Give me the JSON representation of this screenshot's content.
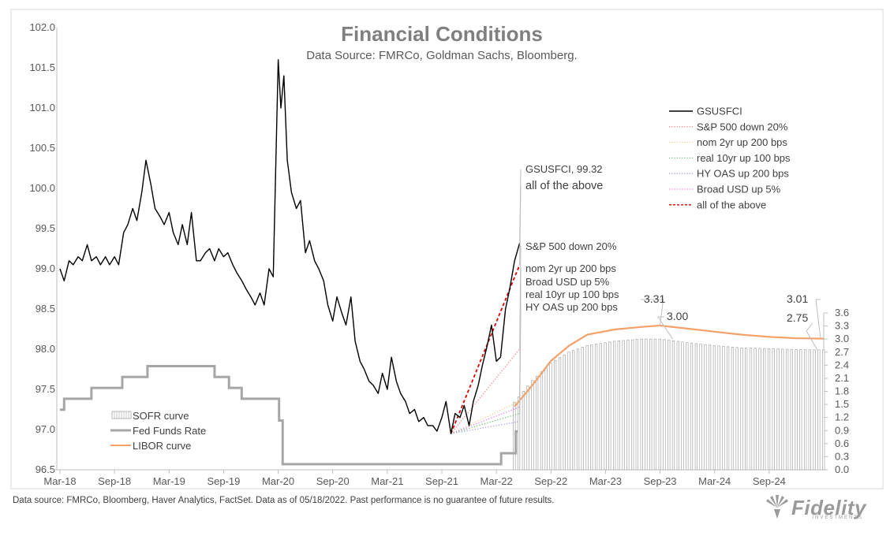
{
  "title": "Financial Conditions",
  "subtitle": "Data Source: FMRCo, Goldman Sachs, Bloomberg.",
  "footer": "Data source: FMRCo, Bloomberg, Haver Analytics, FactSet. Data as of 05/18/2022. Past performance is no guarantee of future results.",
  "logo": {
    "text": "Fidelity",
    "sub": "INVESTMENTS"
  },
  "colors": {
    "gsusfci": "#000000",
    "all_above": "#e00000",
    "sp500": "#f08080",
    "nom2yr": "#f5c89a",
    "real10yr": "#6fbf6f",
    "hyoas": "#9999ee",
    "usd": "#ee77ee",
    "fedfunds": "#a6a6a6",
    "libor": "#f4a16a",
    "sofr": "#a6a6a6",
    "label_orange": "#f08030"
  },
  "chart_data": {
    "type": "line",
    "title": "Financial Conditions",
    "x_ticks": [
      "Mar-18",
      "Sep-18",
      "Mar-19",
      "Sep-19",
      "Mar-20",
      "Sep-20",
      "Mar-21",
      "Sep-21",
      "Mar-22",
      "Sep-22",
      "Mar-23",
      "Sep-23",
      "Mar-24",
      "Sep-24"
    ],
    "x_range": [
      "2018-03",
      "2025-03"
    ],
    "y_left": {
      "ticks": [
        96.5,
        97.0,
        97.5,
        98.0,
        98.5,
        99.0,
        99.5,
        100.0,
        100.5,
        101.0,
        101.5,
        102.0
      ],
      "range": [
        96.5,
        102.0
      ]
    },
    "y_right": {
      "ticks": [
        0.0,
        0.3,
        0.6,
        0.9,
        1.2,
        1.5,
        1.8,
        2.1,
        2.4,
        2.7,
        3.0,
        3.3,
        3.6
      ],
      "range": [
        0.0,
        3.6
      ]
    },
    "legend_top_right": [
      {
        "name": "GSUSFCI",
        "style": "solid",
        "color_key": "gsusfci"
      },
      {
        "name": "S&P 500 down 20%",
        "style": "dotted",
        "color_key": "sp500"
      },
      {
        "name": "nom 2yr up 200 bps",
        "style": "dotted",
        "color_key": "nom2yr"
      },
      {
        "name": "real 10yr up 100 bps",
        "style": "dotted",
        "color_key": "real10yr"
      },
      {
        "name": "HY OAS up 200 bps",
        "style": "dotted",
        "color_key": "hyoas"
      },
      {
        "name": "Broad USD up 5%",
        "style": "dotted",
        "color_key": "usd"
      },
      {
        "name": "all of the above",
        "style": "dashed",
        "color_key": "all_above"
      }
    ],
    "legend_bottom_left": [
      {
        "name": "SOFR curve",
        "style": "bar",
        "color_key": "sofr"
      },
      {
        "name": "Fed Funds Rate",
        "style": "thick",
        "color_key": "fedfunds"
      },
      {
        "name": "LIBOR curve",
        "style": "solid",
        "color_key": "libor"
      }
    ],
    "series": [
      {
        "name": "GSUSFCI",
        "axis": "left",
        "type": "line",
        "color_key": "gsusfci",
        "points": [
          [
            "2018-03",
            99.0
          ],
          [
            "2018-03-15",
            98.85
          ],
          [
            "2018-04",
            99.1
          ],
          [
            "2018-04-15",
            99.05
          ],
          [
            "2018-05",
            99.15
          ],
          [
            "2018-05-15",
            99.1
          ],
          [
            "2018-06",
            99.3
          ],
          [
            "2018-06-15",
            99.1
          ],
          [
            "2018-07",
            99.15
          ],
          [
            "2018-07-15",
            99.05
          ],
          [
            "2018-08",
            99.15
          ],
          [
            "2018-08-15",
            99.05
          ],
          [
            "2018-09",
            99.15
          ],
          [
            "2018-09-15",
            99.05
          ],
          [
            "2018-10",
            99.45
          ],
          [
            "2018-10-15",
            99.55
          ],
          [
            "2018-11",
            99.75
          ],
          [
            "2018-11-15",
            99.6
          ],
          [
            "2018-12",
            99.95
          ],
          [
            "2018-12-15",
            100.35
          ],
          [
            "2019-01",
            100.05
          ],
          [
            "2019-01-15",
            99.75
          ],
          [
            "2019-02",
            99.65
          ],
          [
            "2019-02-15",
            99.55
          ],
          [
            "2019-03",
            99.7
          ],
          [
            "2019-03-15",
            99.45
          ],
          [
            "2019-04",
            99.3
          ],
          [
            "2019-04-15",
            99.55
          ],
          [
            "2019-05",
            99.3
          ],
          [
            "2019-05-15",
            99.7
          ],
          [
            "2019-06",
            99.1
          ],
          [
            "2019-06-15",
            99.1
          ],
          [
            "2019-07",
            99.2
          ],
          [
            "2019-07-15",
            99.25
          ],
          [
            "2019-08",
            99.1
          ],
          [
            "2019-08-15",
            99.25
          ],
          [
            "2019-09",
            99.15
          ],
          [
            "2019-09-15",
            99.2
          ],
          [
            "2019-10",
            99.05
          ],
          [
            "2019-10-15",
            98.95
          ],
          [
            "2019-11",
            98.85
          ],
          [
            "2019-11-15",
            98.75
          ],
          [
            "2019-12",
            98.65
          ],
          [
            "2019-12-15",
            98.55
          ],
          [
            "2020-01",
            98.7
          ],
          [
            "2020-01-15",
            98.55
          ],
          [
            "2020-02",
            99.0
          ],
          [
            "2020-02-15",
            98.9
          ],
          [
            "2020-03",
            101.6
          ],
          [
            "2020-03-10",
            101.0
          ],
          [
            "2020-03-20",
            101.4
          ],
          [
            "2020-04",
            100.35
          ],
          [
            "2020-04-15",
            99.95
          ],
          [
            "2020-05",
            99.75
          ],
          [
            "2020-05-15",
            99.85
          ],
          [
            "2020-06",
            99.2
          ],
          [
            "2020-06-15",
            99.35
          ],
          [
            "2020-07",
            99.1
          ],
          [
            "2020-07-15",
            99.0
          ],
          [
            "2020-08",
            98.85
          ],
          [
            "2020-08-15",
            98.55
          ],
          [
            "2020-09",
            98.35
          ],
          [
            "2020-09-15",
            98.65
          ],
          [
            "2020-10",
            98.45
          ],
          [
            "2020-10-15",
            98.3
          ],
          [
            "2020-11",
            98.65
          ],
          [
            "2020-11-15",
            98.1
          ],
          [
            "2020-12",
            97.85
          ],
          [
            "2020-12-15",
            97.75
          ],
          [
            "2021-01",
            97.6
          ],
          [
            "2021-01-15",
            97.55
          ],
          [
            "2021-02",
            97.45
          ],
          [
            "2021-02-15",
            97.7
          ],
          [
            "2021-03",
            97.5
          ],
          [
            "2021-03-15",
            97.9
          ],
          [
            "2021-04",
            97.6
          ],
          [
            "2021-04-15",
            97.45
          ],
          [
            "2021-05",
            97.35
          ],
          [
            "2021-05-15",
            97.2
          ],
          [
            "2021-06",
            97.25
          ],
          [
            "2021-06-15",
            97.1
          ],
          [
            "2021-07",
            97.15
          ],
          [
            "2021-07-15",
            97.05
          ],
          [
            "2021-08",
            97.05
          ],
          [
            "2021-08-15",
            96.98
          ],
          [
            "2021-09",
            97.15
          ],
          [
            "2021-09-15",
            97.35
          ],
          [
            "2021-10",
            96.95
          ],
          [
            "2021-10-15",
            97.2
          ],
          [
            "2021-11",
            97.15
          ],
          [
            "2021-11-15",
            97.3
          ],
          [
            "2021-12",
            97.05
          ],
          [
            "2021-12-15",
            97.35
          ],
          [
            "2022-01",
            97.55
          ],
          [
            "2022-01-15",
            97.8
          ],
          [
            "2022-02",
            98.05
          ],
          [
            "2022-02-15",
            98.3
          ],
          [
            "2022-03",
            97.85
          ],
          [
            "2022-03-15",
            97.9
          ],
          [
            "2022-04",
            98.5
          ],
          [
            "2022-04-15",
            98.75
          ],
          [
            "2022-05",
            99.1
          ],
          [
            "2022-05-18",
            99.32
          ]
        ]
      },
      {
        "name": "all of the above",
        "axis": "left",
        "type": "dashed",
        "color_key": "all_above",
        "points": [
          [
            "2021-10",
            96.95
          ],
          [
            "2022-05-18",
            99.05
          ]
        ]
      },
      {
        "name": "S&P 500 down 20%",
        "axis": "left",
        "type": "dotted",
        "color_key": "sp500",
        "points": [
          [
            "2021-10",
            96.95
          ],
          [
            "2022-05-18",
            98.0
          ]
        ]
      },
      {
        "name": "nom 2yr up 200 bps",
        "axis": "left",
        "type": "dotted",
        "color_key": "nom2yr",
        "points": [
          [
            "2021-10",
            96.95
          ],
          [
            "2022-05-18",
            97.35
          ]
        ]
      },
      {
        "name": "Broad USD up 5%",
        "axis": "left",
        "type": "dotted",
        "color_key": "usd",
        "points": [
          [
            "2021-10",
            96.95
          ],
          [
            "2022-05-18",
            97.28
          ]
        ]
      },
      {
        "name": "real 10yr up 100 bps",
        "axis": "left",
        "type": "dotted",
        "color_key": "real10yr",
        "points": [
          [
            "2021-10",
            96.95
          ],
          [
            "2022-05-18",
            97.2
          ]
        ]
      },
      {
        "name": "HY OAS up 200 bps",
        "axis": "left",
        "type": "dotted",
        "color_key": "hyoas",
        "points": [
          [
            "2021-10",
            96.95
          ],
          [
            "2022-05-18",
            97.1
          ]
        ]
      },
      {
        "name": "Fed Funds Rate",
        "axis": "right",
        "type": "step",
        "color_key": "fedfunds",
        "points": [
          [
            "2018-03",
            1.38
          ],
          [
            "2018-03-15",
            1.63
          ],
          [
            "2018-06-15",
            1.88
          ],
          [
            "2018-09-27",
            2.13
          ],
          [
            "2018-12-20",
            2.38
          ],
          [
            "2019-08-01",
            2.13
          ],
          [
            "2019-09-19",
            1.88
          ],
          [
            "2019-10-31",
            1.63
          ],
          [
            "2020-03-04",
            1.13
          ],
          [
            "2020-03-16",
            0.13
          ],
          [
            "2022-03-17",
            0.38
          ],
          [
            "2022-05-05",
            0.88
          ]
        ]
      },
      {
        "name": "LIBOR curve",
        "axis": "right",
        "type": "line",
        "color_key": "libor",
        "points": [
          [
            "2022-05",
            1.45
          ],
          [
            "2022-07",
            1.95
          ],
          [
            "2022-09",
            2.5
          ],
          [
            "2022-11",
            2.85
          ],
          [
            "2023-01",
            3.1
          ],
          [
            "2023-04",
            3.22
          ],
          [
            "2023-07",
            3.28
          ],
          [
            "2023-09",
            3.31
          ],
          [
            "2023-12",
            3.24
          ],
          [
            "2024-03",
            3.17
          ],
          [
            "2024-06",
            3.1
          ],
          [
            "2024-09",
            3.05
          ],
          [
            "2024-12",
            3.02
          ],
          [
            "2025-03",
            3.01
          ]
        ]
      },
      {
        "name": "SOFR curve",
        "axis": "right",
        "type": "bars",
        "color_key": "sofr",
        "points": [
          [
            "2022-05",
            1.55
          ],
          [
            "2022-07",
            2.05
          ],
          [
            "2022-09",
            2.45
          ],
          [
            "2022-11",
            2.7
          ],
          [
            "2023-01",
            2.85
          ],
          [
            "2023-04",
            2.95
          ],
          [
            "2023-07",
            3.0
          ],
          [
            "2023-09",
            3.0
          ],
          [
            "2023-12",
            2.92
          ],
          [
            "2024-03",
            2.85
          ],
          [
            "2024-06",
            2.8
          ],
          [
            "2024-09",
            2.78
          ],
          [
            "2024-12",
            2.76
          ],
          [
            "2025-03",
            2.75
          ]
        ]
      }
    ],
    "annotations": {
      "gsusfci_end": "GSUSFCI, 99.32",
      "all_above_end": "all of the above",
      "sp500_end": "S&P 500 down 20%",
      "nom2yr_end": "nom 2yr up 200 bps",
      "usd_end": "Broad USD up 5%",
      "real10yr_end": "real 10yr up 100 bps",
      "hyoas_end": "HY OAS up 200 bps",
      "libor_peak": "3.31",
      "sofr_peak": "3.00",
      "libor_last": "3.01",
      "sofr_last": "2.75"
    }
  }
}
